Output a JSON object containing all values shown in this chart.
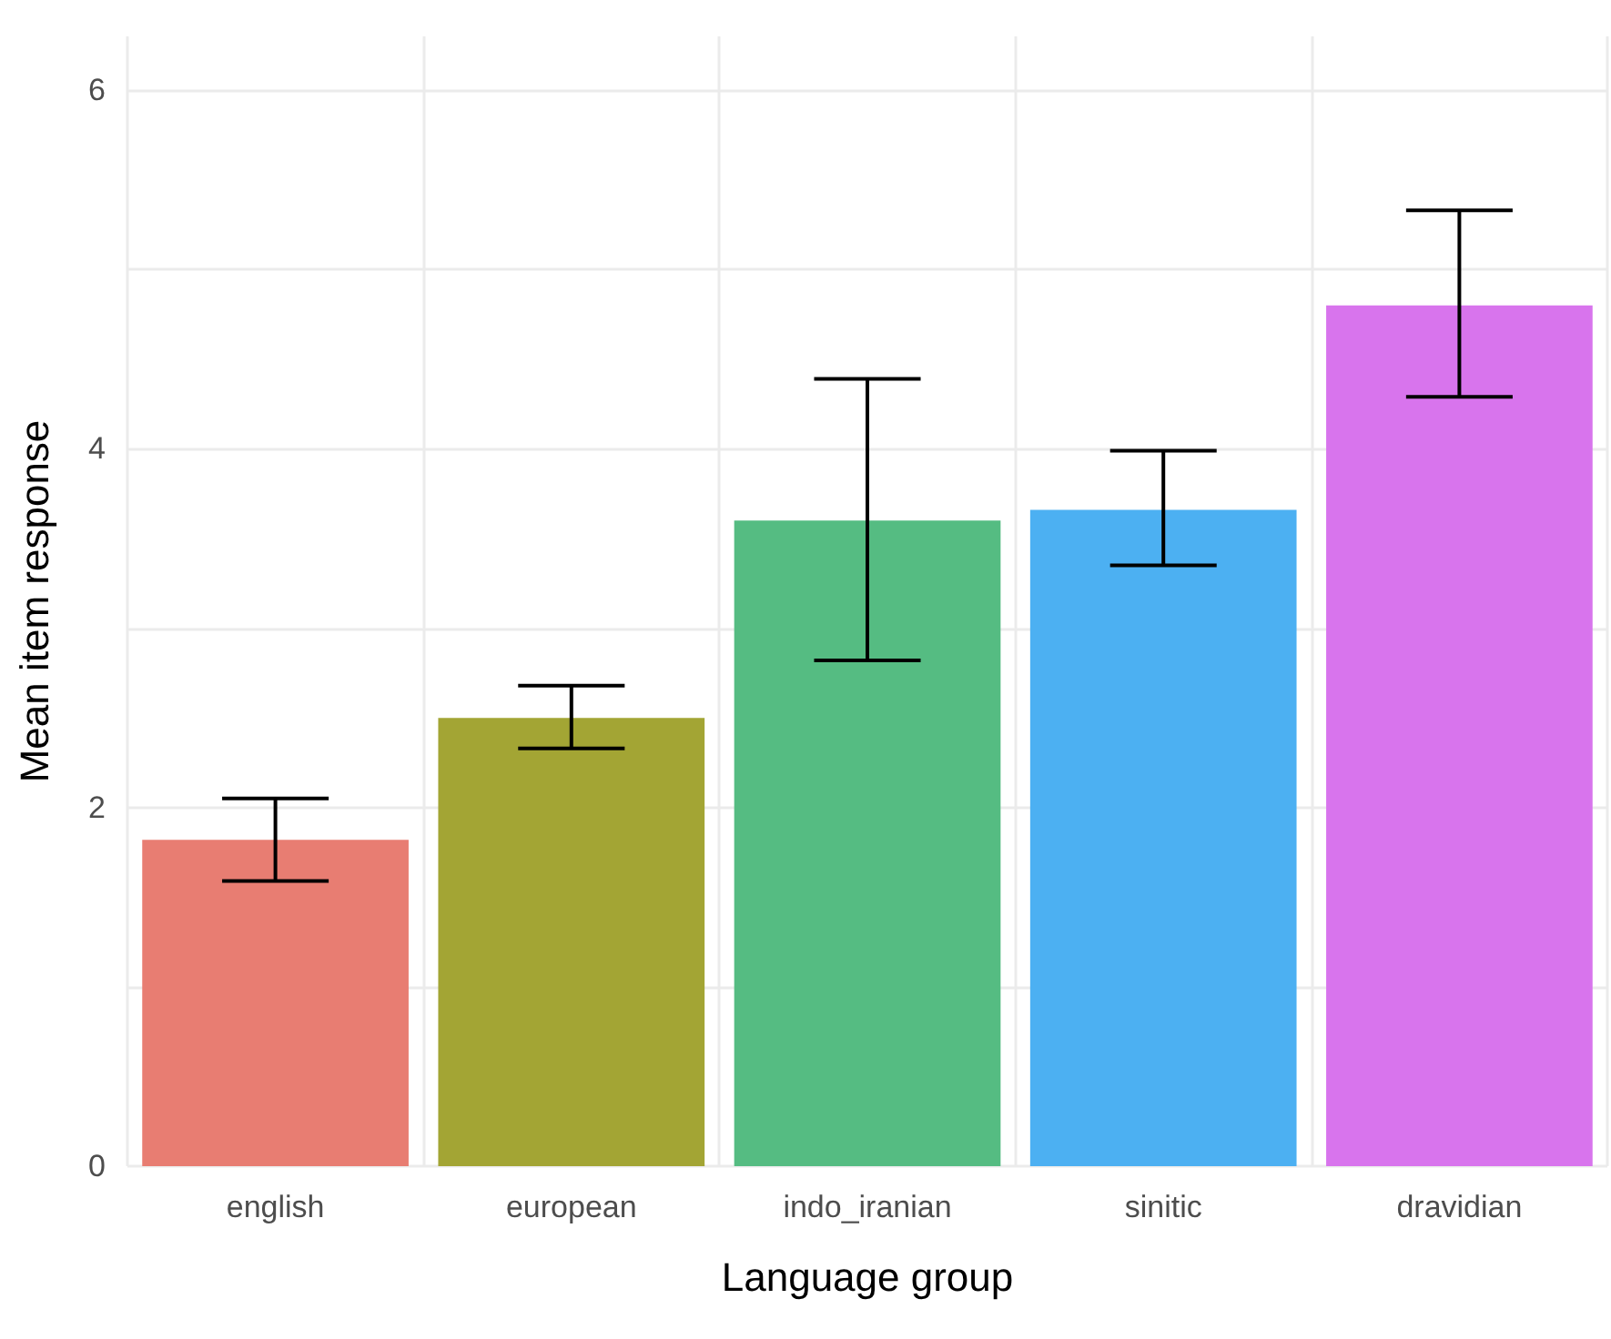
{
  "chart_data": {
    "type": "bar",
    "xlabel": "Language group",
    "ylabel": "Mean item response",
    "categories": [
      "english",
      "european",
      "indo_iranian",
      "sinitic",
      "dravidian"
    ],
    "values": [
      1.82,
      2.5,
      3.6,
      3.66,
      4.8
    ],
    "colors": [
      "#e87d72",
      "#a3a534",
      "#55bc82",
      "#4cb0f2",
      "#d874ed"
    ],
    "errors": [
      [
        1.59,
        2.05
      ],
      [
        2.33,
        2.68
      ],
      [
        2.82,
        4.39
      ],
      [
        3.35,
        3.99
      ],
      [
        4.29,
        5.33
      ]
    ],
    "ylim": [
      0,
      6.3
    ],
    "yticks": [
      0,
      {
        "value": 1,
        "label": null
      },
      2,
      {
        "value": 3,
        "label": null
      },
      4,
      {
        "value": 5,
        "label": null
      },
      6
    ],
    "grid": true
  }
}
